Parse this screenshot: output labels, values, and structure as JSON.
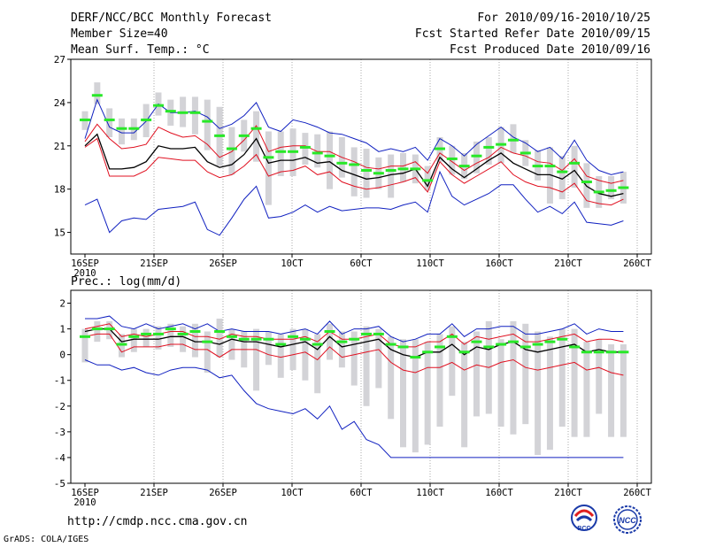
{
  "header": {
    "title": "DERF/NCC/BCC Monthly Forecast",
    "member_size": "Member Size=40",
    "variable": "Mean Surf. Temp.: °C",
    "period": "For 2010/09/16-2010/10/25",
    "started": "Fcst Started Refer Date 2010/09/15",
    "produced": "Fcst Produced Date 2010/09/16"
  },
  "footer": {
    "url": "http://cmdp.ncc.cma.gov.cn",
    "credit": "GrADS: COLA/IGES",
    "logos": [
      "BCC",
      "NCC"
    ]
  },
  "colors": {
    "box": "#d3d3d7",
    "median": "#28e828",
    "mean": "#000000",
    "spread": "#e01020",
    "range": "#1020c0",
    "grid": "#a8a8a8"
  },
  "chart_data": [
    {
      "type": "line",
      "title": "Mean Surf. Temp.: °C",
      "ylabel": "°C",
      "ylim": [
        13.5,
        27
      ],
      "yticks": [
        15,
        18,
        21,
        24,
        27
      ],
      "x_start_day": 1,
      "x_end_day": 41,
      "xtick_days": [
        1,
        6,
        11,
        16,
        21,
        26,
        31,
        36,
        41
      ],
      "xtick_labels": [
        "16SEP",
        "21SEP",
        "26SEP",
        "10CT",
        "60CT",
        "110CT",
        "160CT",
        "210CT",
        "260CT"
      ],
      "x_year_label": "2010",
      "series": [
        {
          "name": "max",
          "values": [
            21.5,
            24.2,
            22.3,
            21.9,
            21.9,
            22.7,
            23.9,
            23.3,
            23.3,
            23.4,
            23.0,
            22.2,
            22.5,
            23.1,
            24.0,
            22.3,
            22.0,
            22.8,
            22.6,
            22.3,
            21.9,
            21.8,
            21.5,
            21.2,
            20.6,
            20.8,
            20.6,
            20.9,
            20.0,
            21.5,
            21.0,
            20.3,
            21.1,
            21.7,
            22.3,
            21.6,
            21.2,
            20.6,
            20.9,
            20.1,
            21.4,
            20.0,
            19.3,
            19.0,
            19.2
          ]
        },
        {
          "name": "mean_plus_std",
          "values": [
            21.3,
            22.5,
            21.5,
            20.8,
            20.9,
            21.1,
            22.3,
            21.9,
            21.6,
            21.7,
            21.1,
            20.2,
            20.6,
            21.4,
            22.4,
            20.6,
            20.9,
            21.0,
            21.0,
            20.6,
            20.6,
            20.2,
            19.9,
            19.5,
            19.4,
            19.6,
            19.6,
            19.9,
            19.1,
            20.5,
            19.9,
            19.3,
            19.8,
            20.2,
            20.9,
            20.5,
            20.3,
            19.9,
            19.8,
            19.3,
            20.1,
            18.9,
            18.6,
            18.4,
            18.6
          ]
        },
        {
          "name": "mean",
          "values": [
            21.0,
            21.8,
            19.4,
            19.4,
            19.5,
            19.9,
            21.0,
            20.8,
            20.8,
            20.9,
            19.9,
            19.5,
            19.7,
            20.4,
            21.5,
            19.8,
            20.0,
            20.0,
            20.2,
            19.8,
            19.9,
            19.3,
            19.0,
            18.7,
            18.8,
            19.0,
            19.1,
            19.4,
            18.2,
            20.2,
            19.4,
            18.8,
            19.4,
            20.0,
            20.5,
            19.8,
            19.4,
            19.0,
            19.0,
            18.7,
            19.3,
            18.2,
            17.7,
            17.5,
            17.7
          ]
        },
        {
          "name": "mean_minus_std",
          "values": [
            20.9,
            21.5,
            18.9,
            18.9,
            18.9,
            19.3,
            20.2,
            20.1,
            20.0,
            20.0,
            19.2,
            18.8,
            19.0,
            19.6,
            20.4,
            18.9,
            19.2,
            19.3,
            19.6,
            19.0,
            19.2,
            18.5,
            18.2,
            18.0,
            18.1,
            18.3,
            18.5,
            18.8,
            17.8,
            19.9,
            19.0,
            18.4,
            18.9,
            19.4,
            19.9,
            19.0,
            18.5,
            18.2,
            18.1,
            17.8,
            18.4,
            17.2,
            17.0,
            16.9,
            17.3
          ]
        },
        {
          "name": "min",
          "values": [
            16.9,
            17.3,
            15.0,
            15.8,
            16.0,
            15.9,
            16.6,
            16.7,
            16.8,
            17.1,
            15.2,
            14.8,
            16.0,
            17.3,
            18.2,
            16.0,
            16.1,
            16.4,
            16.9,
            16.4,
            16.8,
            16.5,
            16.6,
            16.7,
            16.7,
            16.6,
            16.9,
            17.1,
            16.4,
            19.2,
            17.5,
            16.9,
            17.3,
            17.7,
            18.3,
            18.3,
            17.3,
            16.4,
            16.8,
            16.3,
            17.1,
            15.7,
            15.6,
            15.5,
            15.8
          ]
        },
        {
          "name": "median",
          "values": [
            22.8,
            24.5,
            22.8,
            22.2,
            22.2,
            22.8,
            23.8,
            23.4,
            23.3,
            23.3,
            22.7,
            21.7,
            20.8,
            21.7,
            22.2,
            20.2,
            20.6,
            20.6,
            20.9,
            20.5,
            20.3,
            19.8,
            19.7,
            19.3,
            19.1,
            19.3,
            19.4,
            19.4,
            18.6,
            20.8,
            20.1,
            19.6,
            20.3,
            20.9,
            21.1,
            21.4,
            20.5,
            19.6,
            19.6,
            19.2,
            19.8,
            18.5,
            17.8,
            17.9,
            18.1
          ]
        },
        {
          "name": "box_q75",
          "values": [
            23.4,
            25.4,
            23.6,
            22.9,
            22.9,
            23.9,
            24.7,
            24.2,
            24.4,
            24.4,
            24.2,
            23.7,
            22.3,
            22.8,
            23.4,
            22.0,
            22.0,
            22.2,
            21.9,
            21.8,
            22.0,
            21.6,
            20.9,
            20.8,
            20.2,
            20.4,
            20.5,
            20.4,
            19.6,
            21.6,
            21.0,
            20.5,
            21.3,
            21.6,
            22.3,
            22.5,
            21.4,
            20.7,
            20.9,
            20.3,
            21.0,
            19.8,
            18.9,
            18.9,
            19.2
          ]
        },
        {
          "name": "box_q25",
          "values": [
            22.1,
            23.9,
            21.6,
            21.1,
            21.4,
            21.6,
            23.1,
            22.4,
            22.3,
            21.8,
            20.7,
            19.6,
            19.0,
            20.6,
            19.9,
            16.9,
            18.9,
            18.9,
            19.7,
            19.5,
            18.0,
            18.8,
            17.5,
            17.4,
            18.0,
            17.4,
            18.5,
            18.4,
            17.9,
            19.9,
            19.0,
            18.7,
            19.1,
            19.7,
            19.8,
            20.5,
            19.6,
            18.6,
            17.0,
            17.3,
            18.1,
            16.7,
            16.7,
            17.3,
            17.0
          ]
        }
      ]
    },
    {
      "type": "line",
      "title": "Prec.: log(mm/d)",
      "ylabel": "log(mm/d)",
      "ylim": [
        -5,
        2.5
      ],
      "yticks": [
        -5,
        -4,
        -3,
        -2,
        -1,
        0,
        1,
        2
      ],
      "x_start_day": 1,
      "x_end_day": 41,
      "xtick_days": [
        1,
        6,
        11,
        16,
        21,
        26,
        31,
        36,
        41
      ],
      "xtick_labels": [
        "16SEP",
        "21SEP",
        "26SEP",
        "10CT",
        "60CT",
        "110CT",
        "160CT",
        "210CT",
        "260CT"
      ],
      "x_year_label": "2010",
      "series": [
        {
          "name": "max",
          "values": [
            1.4,
            1.4,
            1.5,
            1.1,
            1.0,
            1.2,
            1.0,
            1.1,
            1.2,
            1.0,
            1.2,
            0.9,
            1.0,
            0.9,
            0.9,
            0.9,
            0.8,
            0.9,
            1.0,
            0.8,
            1.3,
            0.8,
            1.0,
            1.0,
            1.1,
            0.7,
            0.5,
            0.6,
            0.8,
            0.8,
            1.2,
            0.7,
            1.0,
            1.0,
            1.1,
            1.1,
            0.8,
            0.8,
            0.9,
            1.0,
            1.2,
            0.8,
            1.0,
            0.9,
            0.9
          ]
        },
        {
          "name": "mean_plus_std",
          "values": [
            1.0,
            1.1,
            1.2,
            0.7,
            0.8,
            0.7,
            0.8,
            0.9,
            0.9,
            0.7,
            0.7,
            0.6,
            0.8,
            0.7,
            0.7,
            0.6,
            0.6,
            0.6,
            0.7,
            0.5,
            0.9,
            0.6,
            0.6,
            0.7,
            0.8,
            0.4,
            0.3,
            0.3,
            0.5,
            0.5,
            0.8,
            0.4,
            0.7,
            0.6,
            0.7,
            0.8,
            0.5,
            0.5,
            0.6,
            0.7,
            0.8,
            0.5,
            0.6,
            0.6,
            0.5
          ]
        },
        {
          "name": "mean",
          "values": [
            0.9,
            1.0,
            1.0,
            0.5,
            0.6,
            0.6,
            0.6,
            0.7,
            0.7,
            0.5,
            0.5,
            0.4,
            0.6,
            0.5,
            0.5,
            0.4,
            0.3,
            0.4,
            0.5,
            0.2,
            0.7,
            0.3,
            0.4,
            0.5,
            0.6,
            0.2,
            0.0,
            -0.1,
            0.1,
            0.1,
            0.4,
            0.0,
            0.3,
            0.2,
            0.4,
            0.5,
            0.2,
            0.1,
            0.2,
            0.3,
            0.4,
            0.1,
            0.2,
            0.1,
            0.1
          ]
        },
        {
          "name": "mean_minus_std",
          "values": [
            0.7,
            0.8,
            0.8,
            0.1,
            0.3,
            0.3,
            0.3,
            0.4,
            0.4,
            0.2,
            0.2,
            -0.1,
            0.2,
            0.2,
            0.2,
            0.0,
            -0.1,
            0.0,
            0.1,
            -0.2,
            0.3,
            -0.1,
            0.0,
            0.1,
            0.2,
            -0.3,
            -0.6,
            -0.7,
            -0.5,
            -0.5,
            -0.3,
            -0.6,
            -0.4,
            -0.5,
            -0.3,
            -0.2,
            -0.5,
            -0.6,
            -0.5,
            -0.4,
            -0.3,
            -0.6,
            -0.5,
            -0.7,
            -0.8
          ]
        },
        {
          "name": "min",
          "values": [
            -0.2,
            -0.4,
            -0.4,
            -0.6,
            -0.5,
            -0.7,
            -0.8,
            -0.6,
            -0.5,
            -0.5,
            -0.6,
            -0.9,
            -0.8,
            -1.4,
            -1.9,
            -2.1,
            -2.2,
            -2.3,
            -2.1,
            -2.5,
            -2.0,
            -2.9,
            -2.6,
            -3.3,
            -3.5,
            -4.0,
            -4.0,
            -4.0,
            -4.0,
            -4.0,
            -4.0,
            -4.0,
            -4.0,
            -4.0,
            -4.0,
            -4.0,
            -4.0,
            -4.0,
            -4.0,
            -4.0,
            -4.0,
            -4.0,
            -4.0,
            -4.0,
            -4.0
          ]
        },
        {
          "name": "median",
          "values": [
            0.7,
            1.0,
            1.0,
            0.4,
            0.7,
            0.8,
            0.8,
            1.0,
            0.8,
            0.9,
            0.5,
            0.9,
            0.7,
            0.6,
            0.6,
            0.6,
            0.4,
            0.7,
            0.6,
            0.4,
            0.9,
            0.5,
            0.6,
            0.8,
            0.8,
            0.4,
            0.3,
            -0.1,
            0.1,
            0.3,
            0.7,
            0.1,
            0.5,
            0.3,
            0.4,
            0.5,
            0.3,
            0.4,
            0.5,
            0.6,
            0.3,
            0.1,
            0.1,
            0.1,
            0.1
          ]
        },
        {
          "name": "box_q75",
          "values": [
            1.0,
            1.3,
            1.3,
            0.8,
            1.0,
            1.0,
            1.1,
            1.2,
            1.1,
            1.2,
            0.9,
            1.4,
            1.0,
            0.9,
            1.0,
            0.9,
            0.8,
            1.0,
            1.0,
            0.8,
            1.2,
            0.9,
            0.9,
            1.1,
            1.0,
            0.7,
            0.6,
            0.6,
            0.5,
            0.8,
            1.1,
            0.5,
            0.9,
            1.3,
            0.6,
            1.3,
            1.2,
            0.9,
            0.7,
            1.0,
            1.0,
            0.5,
            0.6,
            0.4,
            0.4
          ]
        },
        {
          "name": "box_q25",
          "values": [
            -0.3,
            0.5,
            0.6,
            -0.1,
            0.1,
            0.3,
            0.2,
            0.3,
            0.1,
            -0.1,
            -0.7,
            -0.1,
            -0.2,
            -0.5,
            -1.4,
            -0.4,
            -0.9,
            -0.6,
            -1.0,
            -1.5,
            -0.2,
            -0.5,
            -1.2,
            -2.0,
            -1.3,
            -2.5,
            -3.6,
            -3.8,
            -3.5,
            -2.8,
            -1.6,
            -3.6,
            -2.4,
            -2.3,
            -2.8,
            -3.1,
            -2.7,
            -3.9,
            -3.7,
            -2.8,
            -3.2,
            -3.2,
            -2.3,
            -3.2,
            -3.2
          ]
        }
      ]
    }
  ]
}
